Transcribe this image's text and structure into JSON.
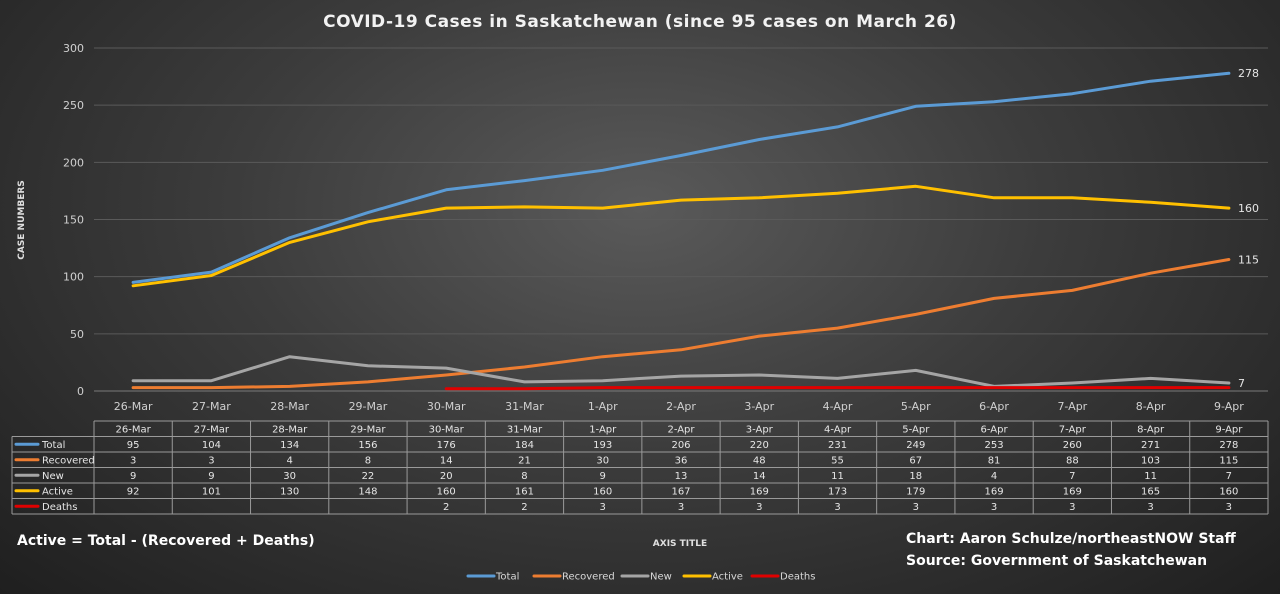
{
  "chart_data": {
    "type": "line",
    "title": "COVID-19 Cases in Saskatchewan (since 95 cases on March 26)",
    "ylabel": "CASE NUMBERS",
    "xlabel": "AXIS TITLE",
    "ylim": [
      0,
      300
    ],
    "yticks": [
      0,
      50,
      100,
      150,
      200,
      250,
      300
    ],
    "categories": [
      "26-Mar",
      "27-Mar",
      "28-Mar",
      "29-Mar",
      "30-Mar",
      "31-Mar",
      "1-Apr",
      "2-Apr",
      "3-Apr",
      "4-Apr",
      "5-Apr",
      "6-Apr",
      "7-Apr",
      "8-Apr",
      "9-Apr"
    ],
    "series": [
      {
        "name": "Total",
        "color": "#5b9bd5",
        "values": [
          95,
          104,
          134,
          156,
          176,
          184,
          193,
          206,
          220,
          231,
          249,
          253,
          260,
          271,
          278
        ],
        "end_label": "278"
      },
      {
        "name": "Recovered",
        "color": "#ed7d31",
        "values": [
          3,
          3,
          4,
          8,
          14,
          21,
          30,
          36,
          48,
          55,
          67,
          81,
          88,
          103,
          115
        ],
        "end_label": "115"
      },
      {
        "name": "New",
        "color": "#a5a5a5",
        "values": [
          9,
          9,
          30,
          22,
          20,
          8,
          9,
          13,
          14,
          11,
          18,
          4,
          7,
          11,
          7
        ],
        "end_label": "7"
      },
      {
        "name": "Active",
        "color": "#ffc000",
        "values": [
          92,
          101,
          130,
          148,
          160,
          161,
          160,
          167,
          169,
          173,
          179,
          169,
          169,
          165,
          160
        ],
        "end_label": "160"
      },
      {
        "name": "Deaths",
        "color": "#e00000",
        "values": [
          null,
          null,
          null,
          null,
          2,
          2,
          3,
          3,
          3,
          3,
          3,
          3,
          3,
          3,
          3
        ],
        "end_label": ""
      }
    ],
    "notes": {
      "formula": "Active = Total - (Recovered + Deaths)",
      "credit": "Chart: Aaron Schulze/northeastNOW Staff",
      "source": "Source: Government of Saskatchewan"
    },
    "legend": "bottom"
  }
}
